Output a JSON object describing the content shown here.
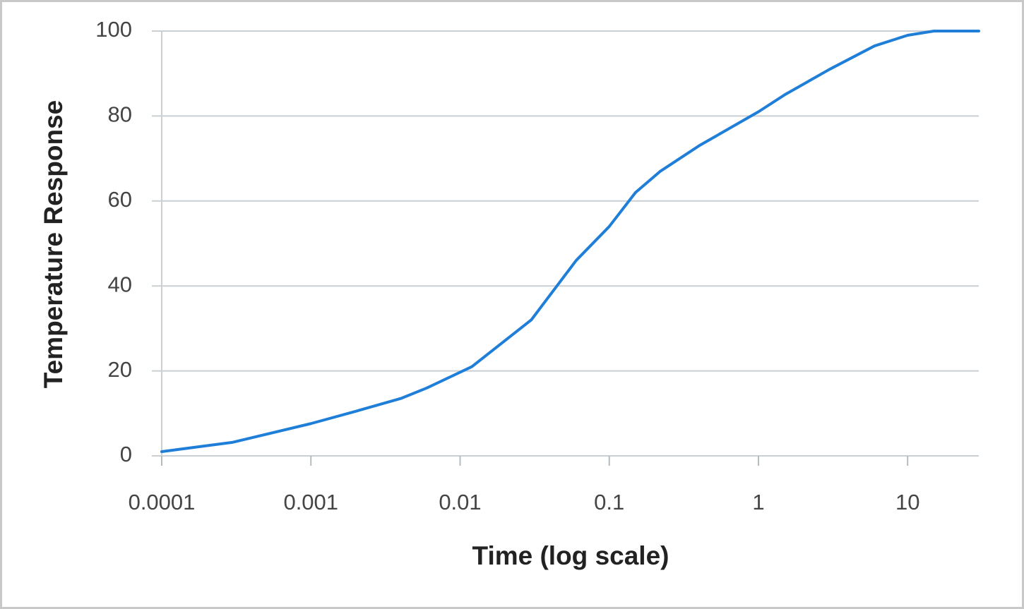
{
  "chart_data": {
    "type": "line",
    "x_label": "Time (log scale)",
    "y_label": "Temperature Response",
    "x_scale": "log",
    "grid": true,
    "series": [
      {
        "color": "#1f7fd8",
        "x": [
          0.0001,
          0.0003,
          0.001,
          0.002,
          0.004,
          0.006,
          0.012,
          0.03,
          0.06,
          0.1,
          0.15,
          0.22,
          0.4,
          1,
          1.5,
          3,
          6,
          10,
          15,
          30
        ],
        "values": [
          1,
          3.2,
          7.6,
          10.5,
          13.5,
          16,
          21,
          32,
          46,
          54,
          62,
          67,
          73,
          81,
          85,
          91,
          96.5,
          99,
          100,
          100
        ]
      }
    ],
    "xlim": [
      0.0001,
      30
    ],
    "xticks": [
      0.0001,
      0.001,
      0.01,
      0.1,
      1,
      10
    ],
    "ylim": [
      0,
      100
    ],
    "yticks": [
      0,
      20,
      40,
      60,
      80,
      100
    ]
  }
}
